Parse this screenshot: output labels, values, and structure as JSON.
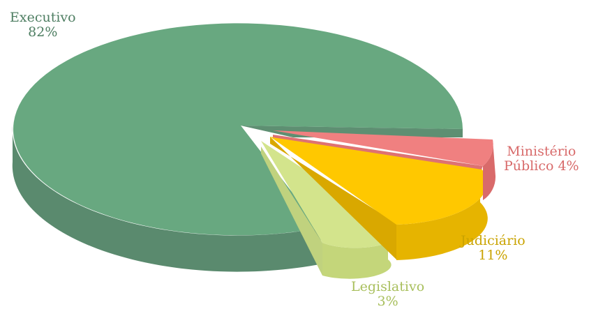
{
  "chart_data": {
    "type": "pie",
    "style": "3d-exploded",
    "title": "",
    "slices": [
      {
        "label": "Executivo",
        "value": 82,
        "value_label": "82%",
        "color": "#68a880",
        "side_color": "#5a8a6e",
        "label_color": "#4e7e62"
      },
      {
        "label": "Ministério Público",
        "value": 4,
        "value_label": "4%",
        "color": "#f08080",
        "side_color": "#d96a6a",
        "label_color": "#d86a6a"
      },
      {
        "label": "Judiciário",
        "value": 11,
        "value_label": "11%",
        "color": "#ffc800",
        "side_color": "#e6b400",
        "label_color": "#c9a300"
      },
      {
        "label": "Legislativo",
        "value": 3,
        "value_label": "3%",
        "color": "#d3e48c",
        "side_color": "#b9cc78",
        "label_color": "#a8bf5c"
      }
    ]
  },
  "labels": {
    "executivo": {
      "name": "Executivo",
      "value": "82%"
    },
    "ministerio": {
      "line1": "Ministério",
      "line2": "Público 4%"
    },
    "judiciario": {
      "name": "Judiciário",
      "value": "11%"
    },
    "legislativo": {
      "name": "Legislativo",
      "value": "3%"
    }
  }
}
